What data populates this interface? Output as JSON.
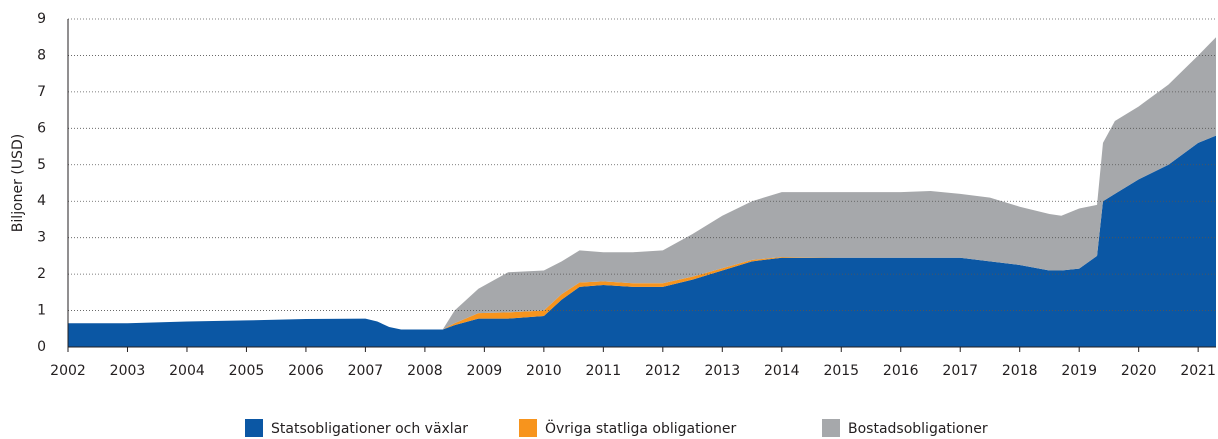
{
  "chart_data": {
    "type": "stacked_area",
    "y_label": "Biljoner (USD)",
    "x": [
      2002,
      2003,
      2004,
      2005,
      2006,
      2007,
      2007.2,
      2007.4,
      2007.6,
      2008,
      2008.3,
      2008.5,
      2008.9,
      2009.4,
      2010,
      2010.3,
      2010.6,
      2011,
      2011.5,
      2012,
      2012.5,
      2013,
      2013.5,
      2014,
      2015,
      2016,
      2016.5,
      2017,
      2017.5,
      2018,
      2018.5,
      2018.7,
      2019,
      2019.3,
      2019.4,
      2019.6,
      2020,
      2020.5,
      2021,
      2021.3
    ],
    "series": [
      {
        "name": "Statsobligationer och växlar",
        "color": "#0b57a4",
        "values": [
          0.65,
          0.65,
          0.7,
          0.73,
          0.77,
          0.78,
          0.7,
          0.55,
          0.48,
          0.48,
          0.48,
          0.6,
          0.78,
          0.78,
          0.85,
          1.3,
          1.65,
          1.7,
          1.65,
          1.65,
          1.85,
          2.1,
          2.35,
          2.45,
          2.45,
          2.45,
          2.45,
          2.45,
          2.35,
          2.25,
          2.1,
          2.1,
          2.15,
          2.5,
          4.0,
          4.2,
          4.6,
          5.0,
          5.6,
          5.8
        ]
      },
      {
        "name": "Övriga statliga obligationer",
        "color": "#f7941d",
        "values": [
          0,
          0,
          0,
          0,
          0,
          0,
          0,
          0,
          0,
          0,
          0,
          0.05,
          0.15,
          0.17,
          0.15,
          0.15,
          0.12,
          0.1,
          0.1,
          0.1,
          0.08,
          0.06,
          0.04,
          0.02,
          0,
          0,
          0,
          0,
          0,
          0,
          0,
          0,
          0,
          0,
          0,
          0,
          0,
          0,
          0,
          0
        ]
      },
      {
        "name": "Bostadsobligationer",
        "color": "#a6a8ab",
        "values": [
          0,
          0,
          0,
          0,
          0,
          0,
          0,
          0,
          0,
          0,
          0,
          0.35,
          0.67,
          1.1,
          1.1,
          0.9,
          0.88,
          0.8,
          0.85,
          0.9,
          1.17,
          1.44,
          1.61,
          1.78,
          1.8,
          1.8,
          1.83,
          1.75,
          1.75,
          1.6,
          1.55,
          1.5,
          1.65,
          1.4,
          1.6,
          2.0,
          2.0,
          2.2,
          2.4,
          2.7
        ]
      }
    ],
    "xlim": [
      2002,
      2021.3
    ],
    "xticks": [
      2002,
      2003,
      2004,
      2005,
      2006,
      2007,
      2008,
      2009,
      2010,
      2011,
      2012,
      2013,
      2014,
      2015,
      2016,
      2017,
      2018,
      2019,
      2020,
      2021
    ],
    "ylim": [
      0,
      9
    ],
    "yticks": [
      0,
      1,
      2,
      3,
      4,
      5,
      6,
      7,
      8,
      9
    ],
    "grid": true,
    "legend": "bottom"
  }
}
